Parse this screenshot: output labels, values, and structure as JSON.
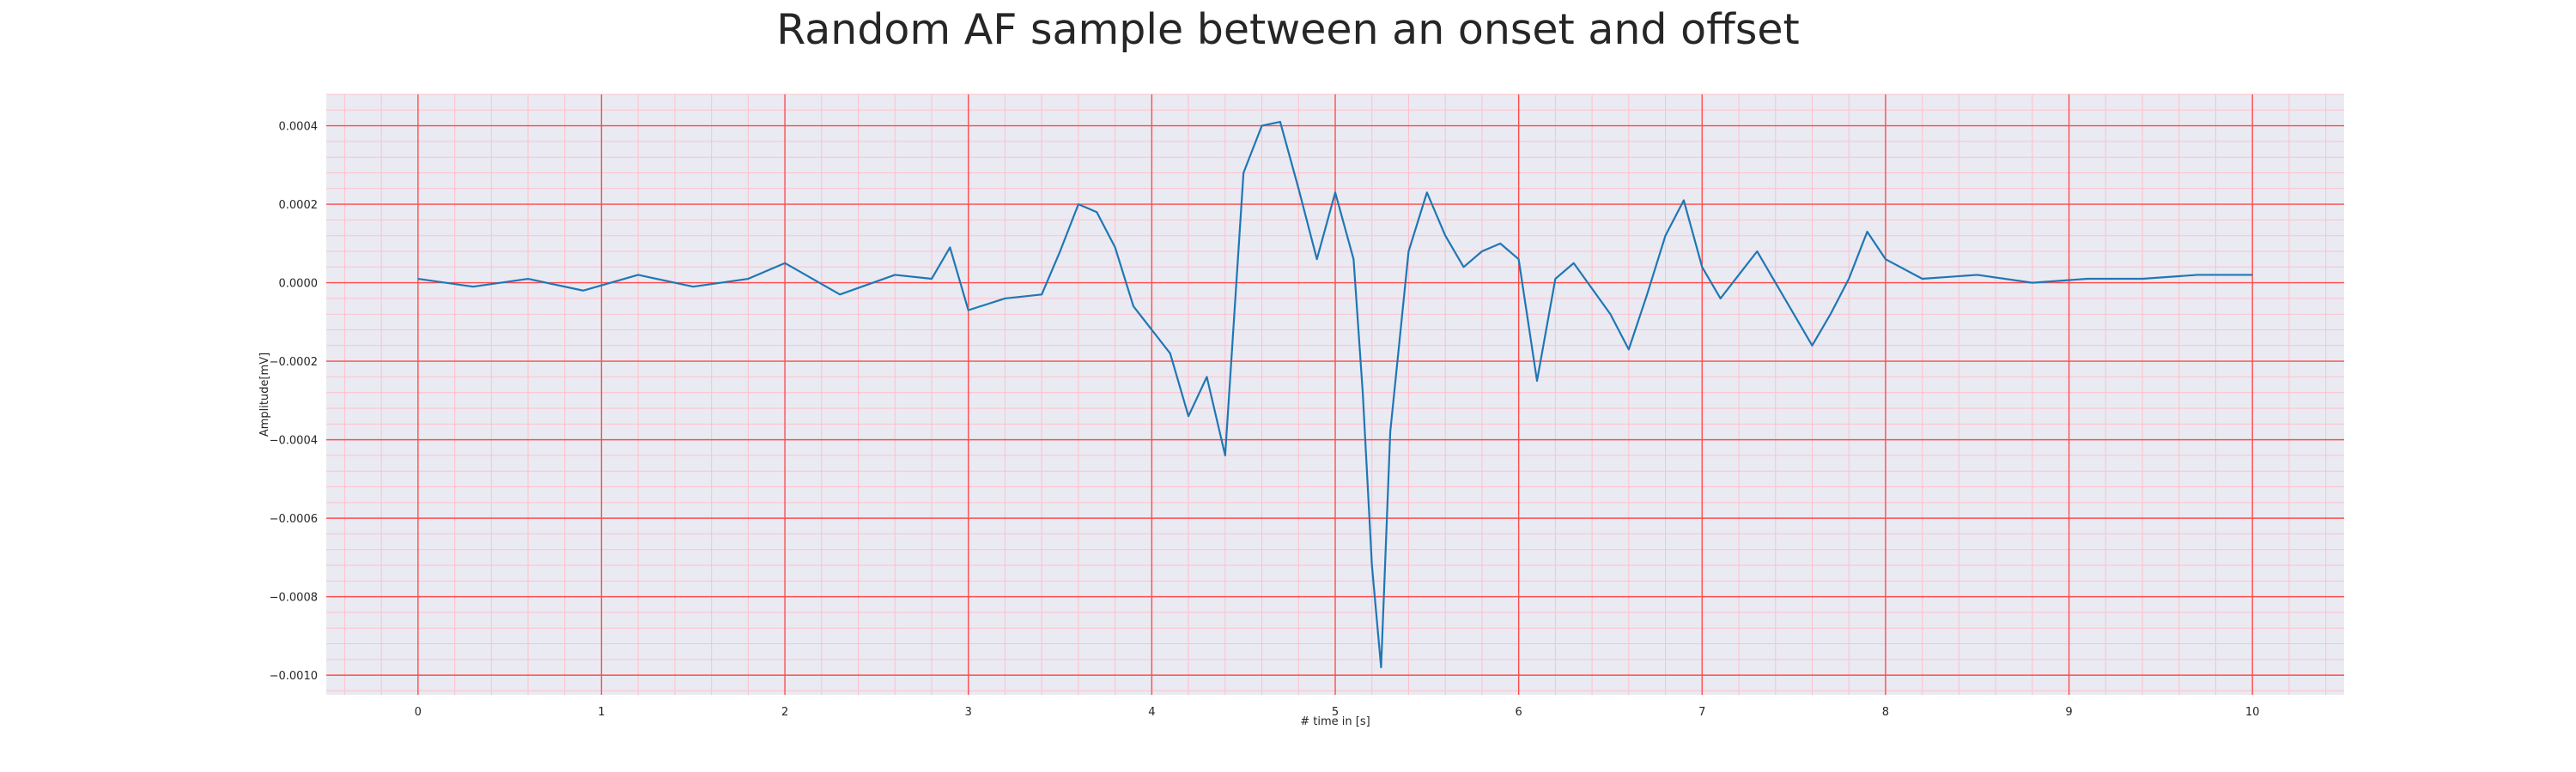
{
  "chart_data": {
    "type": "line",
    "title": "Random AF sample between an onset and offset",
    "xlabel": "# time in [s]",
    "ylabel": "Amplitude[mV]",
    "xlim": [
      -0.5,
      10.5
    ],
    "ylim": [
      -0.00105,
      0.00048
    ],
    "x_ticks": [
      0,
      1,
      2,
      3,
      4,
      5,
      6,
      7,
      8,
      9,
      10
    ],
    "x_tick_labels": [
      "0",
      "1",
      "2",
      "3",
      "4",
      "5",
      "6",
      "7",
      "8",
      "9",
      "10"
    ],
    "y_ticks": [
      0.0004,
      0.0002,
      0.0,
      -0.0002,
      -0.0004,
      -0.0006,
      -0.0008,
      -0.001
    ],
    "y_tick_labels": [
      "0.0004",
      "0.0002",
      "0.0000",
      "−0.0002",
      "−0.0004",
      "−0.0006",
      "−0.0008",
      "−0.0010"
    ],
    "grid": true,
    "minor_grid": true,
    "colors": {
      "plot_background": "#eaeaf2",
      "major_grid": "#ff4d4d",
      "minor_grid": "#ffc0cb",
      "line": "#1f77b4"
    },
    "series": [
      {
        "x": [
          0.0,
          0.3,
          0.6,
          0.9,
          1.2,
          1.5,
          1.8,
          2.0,
          2.3,
          2.6,
          2.8,
          2.9,
          3.0,
          3.2,
          3.4,
          3.5,
          3.6,
          3.7,
          3.8,
          3.9,
          4.0,
          4.1,
          4.2,
          4.3,
          4.4,
          4.5,
          4.6,
          4.7,
          4.8,
          4.9,
          5.0,
          5.1,
          5.15,
          5.2,
          5.25,
          5.3,
          5.4,
          5.5,
          5.6,
          5.7,
          5.8,
          5.9,
          6.0,
          6.1,
          6.2,
          6.3,
          6.5,
          6.6,
          6.7,
          6.8,
          6.9,
          7.0,
          7.1,
          7.2,
          7.3,
          7.5,
          7.6,
          7.7,
          7.8,
          7.9,
          8.0,
          8.2,
          8.5,
          8.8,
          9.1,
          9.4,
          9.7,
          10.0
        ],
        "y": [
          1e-05,
          -1e-05,
          1e-05,
          -2e-05,
          2e-05,
          -1e-05,
          1e-05,
          5e-05,
          -3e-05,
          2e-05,
          1e-05,
          9e-05,
          -7e-05,
          -4e-05,
          -3e-05,
          8e-05,
          0.0002,
          0.00018,
          9e-05,
          -6e-05,
          -0.00012,
          -0.00018,
          -0.00034,
          -0.00024,
          -0.00044,
          0.00028,
          0.0004,
          0.00041,
          0.00024,
          6e-05,
          0.00023,
          6e-05,
          -0.00028,
          -0.00072,
          -0.00098,
          -0.00038,
          8e-05,
          0.00023,
          0.00012,
          4e-05,
          8e-05,
          0.0001,
          6e-05,
          -0.00025,
          1e-05,
          5e-05,
          -8e-05,
          -0.00017,
          -3e-05,
          0.00012,
          0.00021,
          4e-05,
          -4e-05,
          2e-05,
          8e-05,
          -8e-05,
          -0.00016,
          -8e-05,
          1e-05,
          0.00013,
          6e-05,
          1e-05,
          2e-05,
          0.0,
          1e-05,
          1e-05,
          2e-05,
          2e-05
        ]
      }
    ]
  }
}
